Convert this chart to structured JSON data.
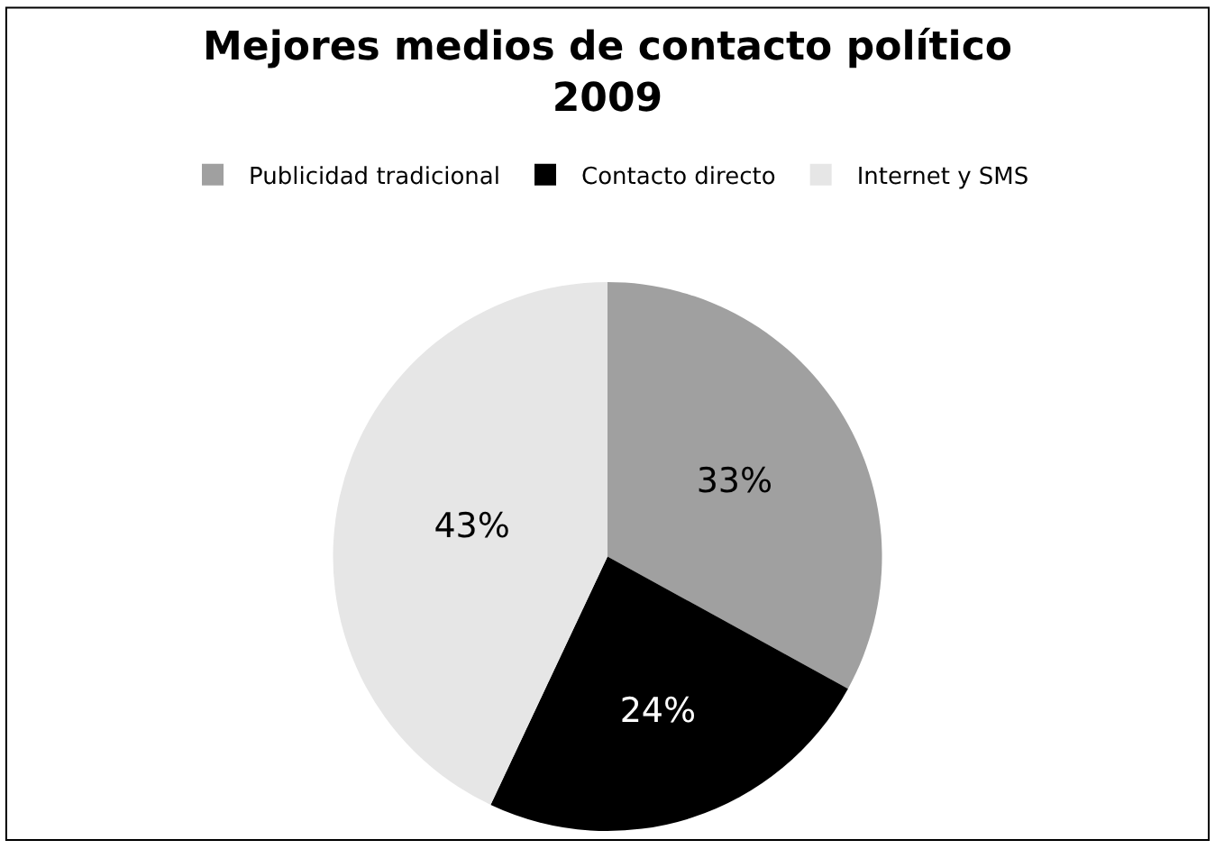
{
  "chart_data": {
    "type": "pie",
    "title": "Mejores medios de contacto político\n2009",
    "categories": [
      "Publicidad tradicional",
      "Contacto directo",
      "Internet y SMS"
    ],
    "values": [
      33,
      24,
      43
    ],
    "colors": [
      "#a0a0a0",
      "#000000",
      "#e6e6e6"
    ],
    "value_labels": [
      "33%",
      "24%",
      "43%"
    ],
    "legend": "top"
  }
}
